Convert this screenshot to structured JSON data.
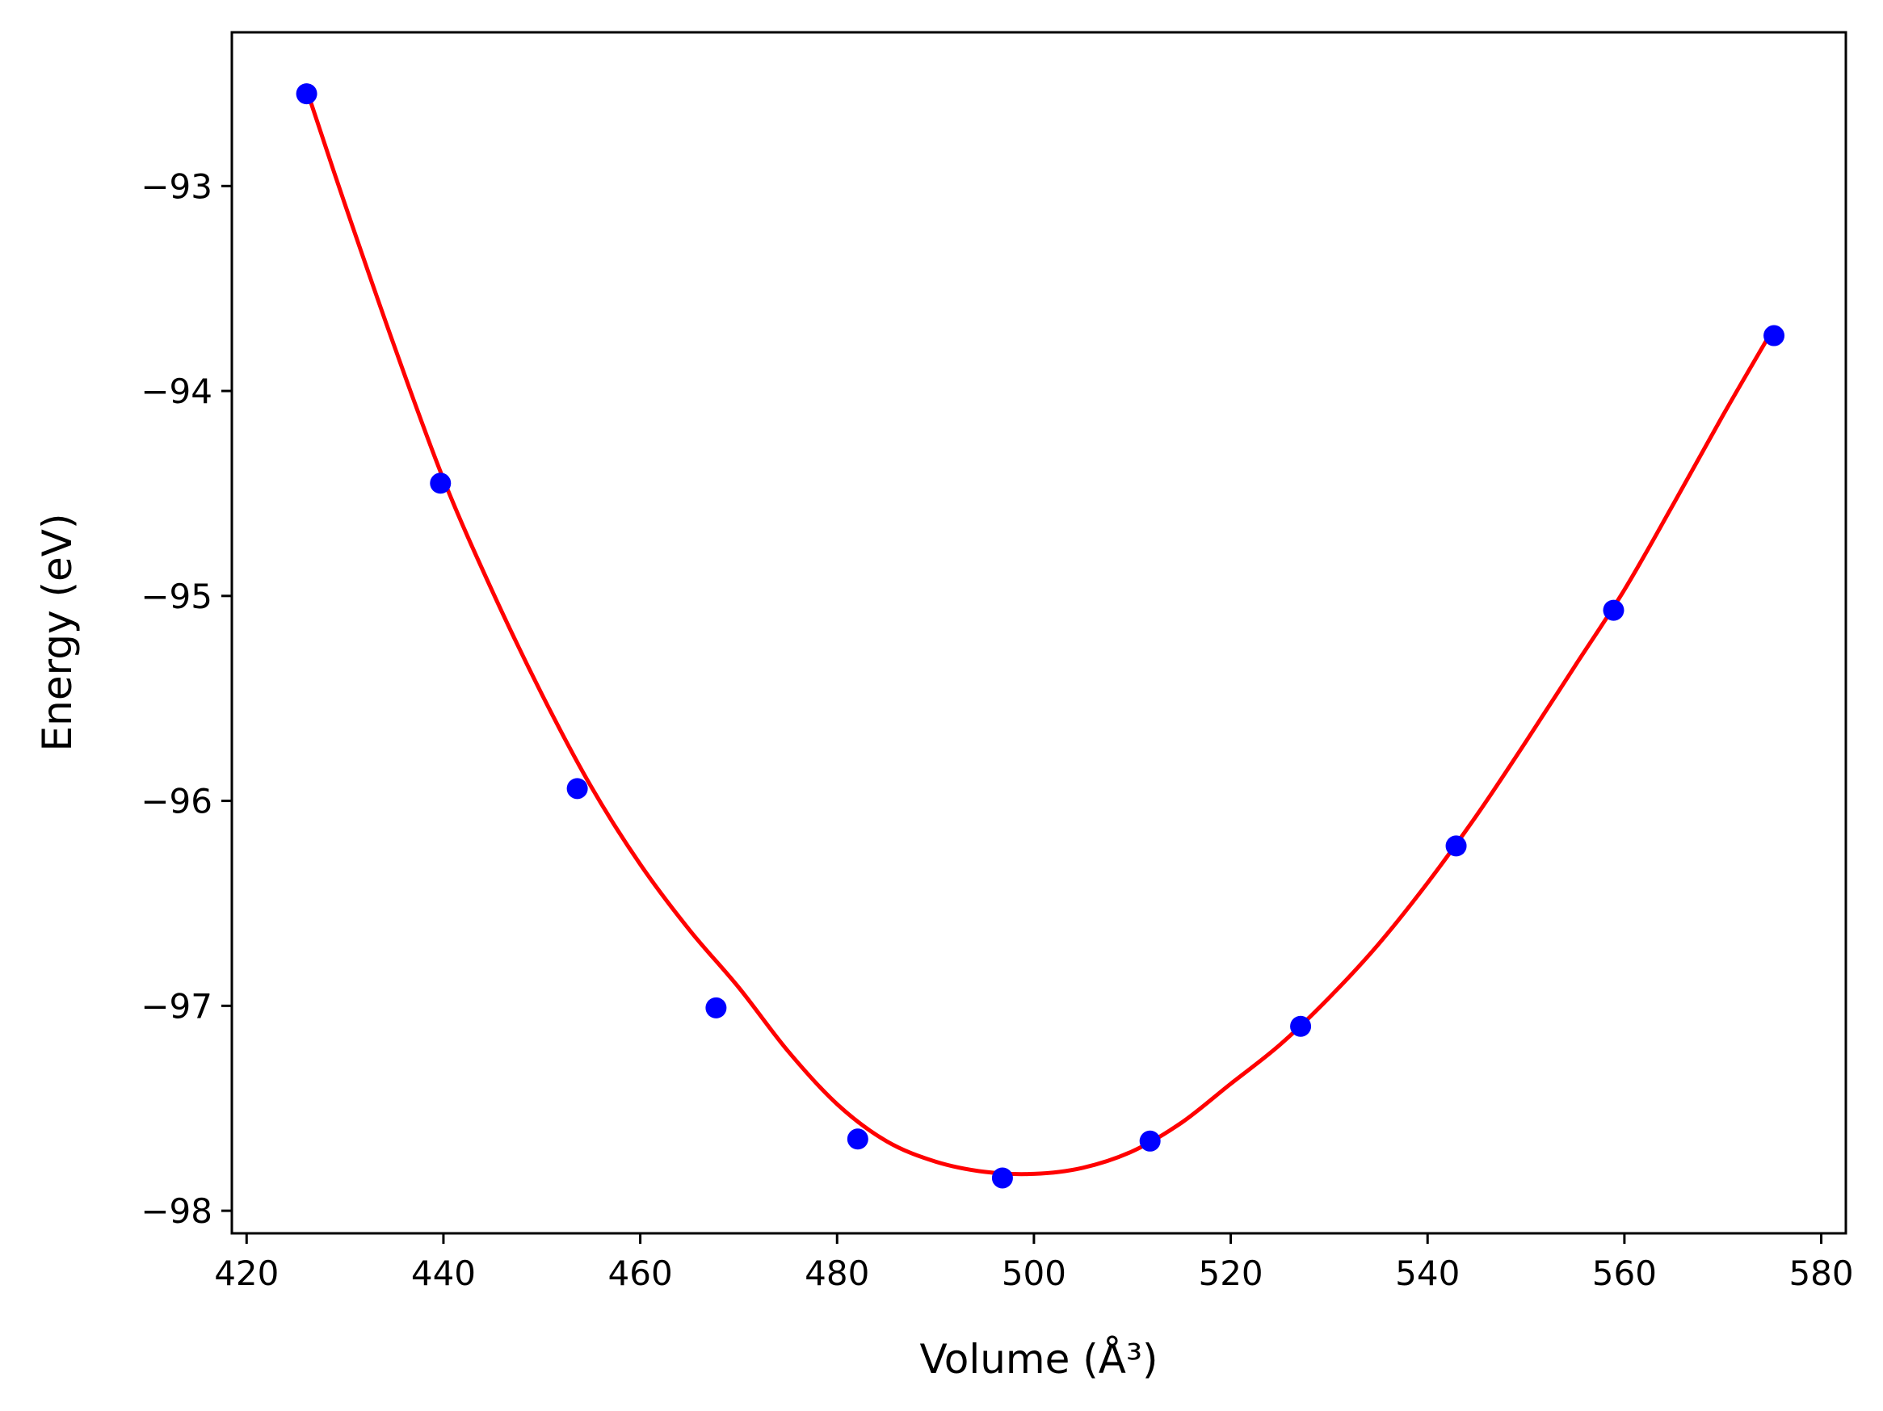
{
  "chart_data": {
    "type": "scatter",
    "title": "",
    "xlabel": "Volume (Å³)",
    "ylabel": "Energy (eV)",
    "xlim": [
      418.5,
      582.5
    ],
    "ylim": [
      -98.11,
      -92.25
    ],
    "x_ticks": [
      420,
      440,
      460,
      480,
      500,
      520,
      540,
      560,
      580
    ],
    "y_ticks": [
      -98,
      -97,
      -96,
      -95,
      -94,
      -93
    ],
    "x_tick_labels": [
      "420",
      "440",
      "460",
      "480",
      "500",
      "520",
      "540",
      "560",
      "580"
    ],
    "y_tick_labels": [
      "−98",
      "−97",
      "−96",
      "−95",
      "−94",
      "−93"
    ],
    "grid": false,
    "series": [
      {
        "kind": "points",
        "color": "#0000ff",
        "x": [
          426.1,
          439.7,
          453.6,
          467.7,
          482.1,
          496.8,
          511.8,
          527.1,
          542.9,
          558.9,
          575.2
        ],
        "y": [
          -92.55,
          -94.45,
          -95.94,
          -97.01,
          -97.65,
          -97.84,
          -97.66,
          -97.1,
          -96.22,
          -95.07,
          -93.73
        ]
      },
      {
        "kind": "fit-curve",
        "color": "#ff0000",
        "x": [
          426.1,
          430,
          435,
          440,
          445,
          450,
          455,
          460,
          465,
          470,
          475,
          480,
          485,
          490,
          495,
          500,
          505,
          510,
          515,
          520,
          525,
          530,
          535,
          540,
          545,
          550,
          555,
          560,
          565,
          570,
          575.2
        ],
        "y": [
          -92.53,
          -93.09,
          -93.78,
          -94.43,
          -94.98,
          -95.48,
          -95.93,
          -96.31,
          -96.63,
          -96.91,
          -97.22,
          -97.48,
          -97.66,
          -97.76,
          -97.81,
          -97.82,
          -97.79,
          -97.71,
          -97.57,
          -97.38,
          -97.19,
          -96.96,
          -96.7,
          -96.4,
          -96.07,
          -95.71,
          -95.34,
          -94.97,
          -94.55,
          -94.12,
          -93.69
        ]
      }
    ]
  }
}
